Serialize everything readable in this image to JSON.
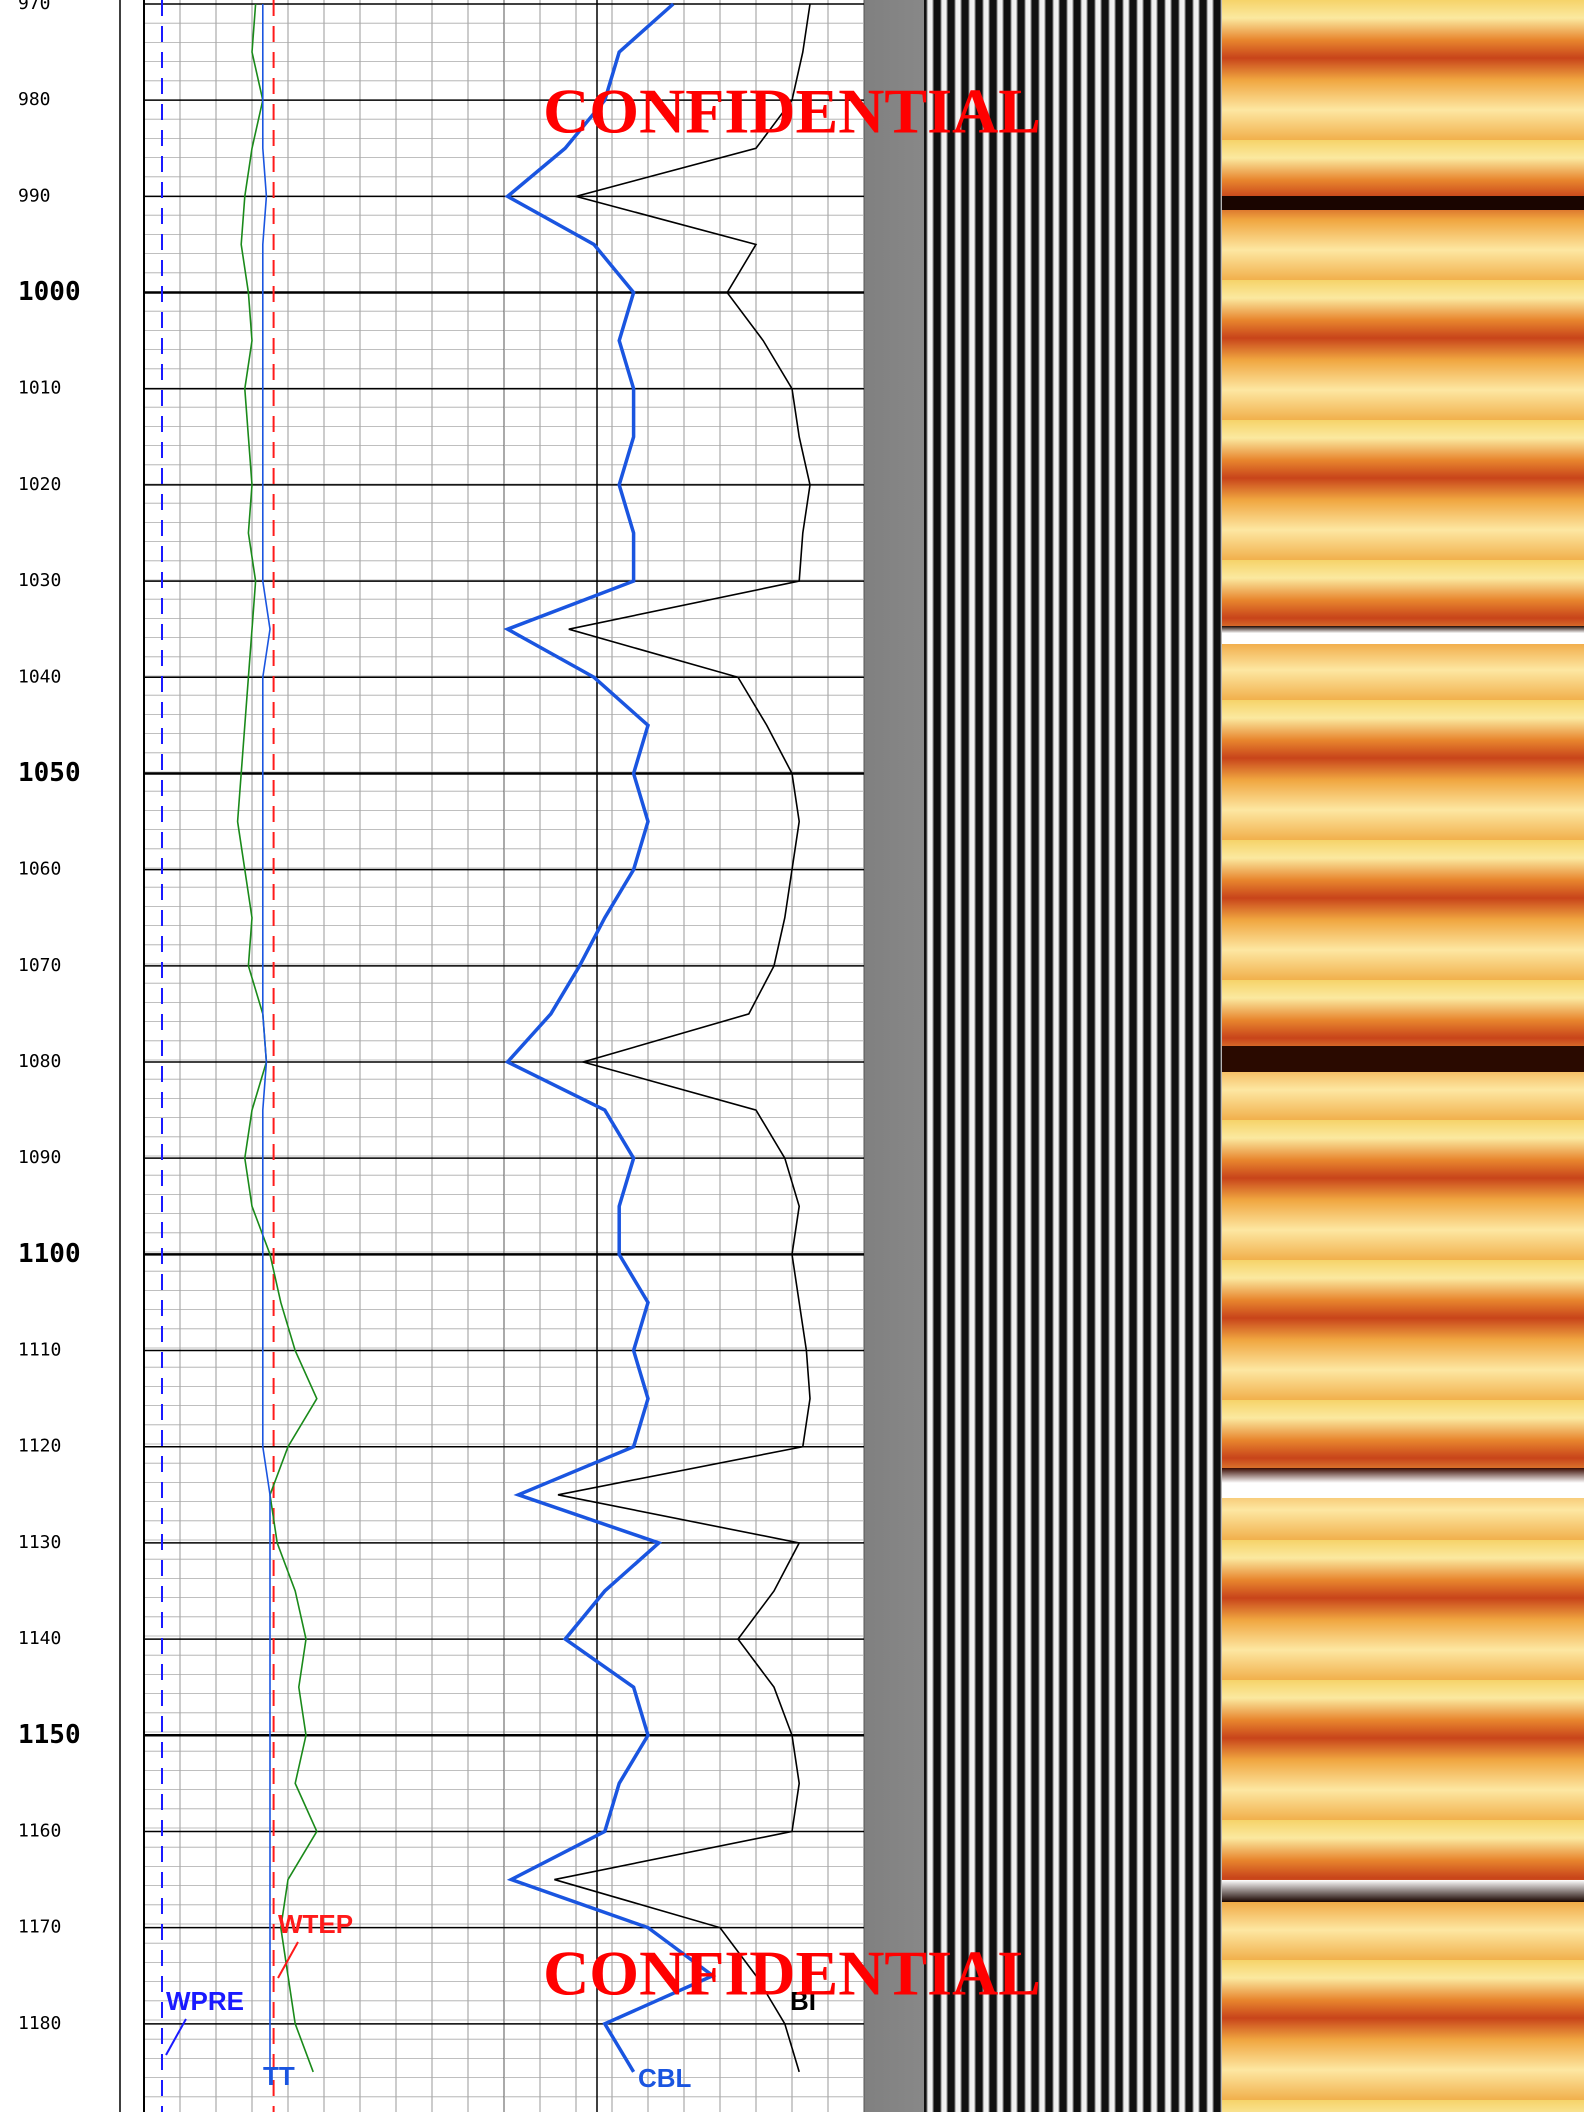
{
  "chart_data": {
    "type": "well-log",
    "ylim": [
      970,
      1190
    ],
    "yticks": [
      970,
      980,
      990,
      1000,
      1010,
      1020,
      1030,
      1040,
      1050,
      1060,
      1070,
      1080,
      1090,
      1100,
      1110,
      1120,
      1130,
      1140,
      1150,
      1160,
      1170,
      1180
    ],
    "xlim": [
      0,
      100
    ],
    "depths": [
      970,
      975,
      980,
      985,
      990,
      995,
      1000,
      1005,
      1010,
      1015,
      1020,
      1025,
      1030,
      1035,
      1040,
      1045,
      1050,
      1055,
      1060,
      1065,
      1070,
      1075,
      1080,
      1085,
      1090,
      1095,
      1100,
      1105,
      1110,
      1115,
      1120,
      1125,
      1130,
      1135,
      1140,
      1145,
      1150,
      1155,
      1160,
      1165,
      1170,
      1175,
      1180,
      1185
    ],
    "constants": [
      {
        "name": "WPRE",
        "color": "#1a1aff",
        "track": 1,
        "value": 5
      },
      {
        "name": "WTEP",
        "color": "#ff1a1a",
        "track": 1,
        "value": 36
      }
    ],
    "series": [
      {
        "color": "#1a8a1a",
        "track": 1,
        "values": [
          31,
          30,
          33,
          30,
          28,
          27,
          29,
          30,
          28,
          29,
          30,
          29,
          31,
          30,
          29,
          28,
          27,
          26,
          28,
          30,
          29,
          33,
          34,
          30,
          28,
          30,
          35,
          38,
          42,
          48,
          40,
          35,
          37,
          42,
          45,
          43,
          45,
          42,
          48,
          40,
          38,
          40,
          42,
          47
        ]
      },
      {
        "name": "TT",
        "color": "#1a55e0",
        "track": 1,
        "values": [
          33,
          33,
          33,
          33,
          34,
          33,
          33,
          33,
          33,
          33,
          33,
          33,
          33,
          35,
          33,
          33,
          33,
          33,
          33,
          33,
          33,
          33,
          34,
          33,
          33,
          33,
          33,
          33,
          33,
          33,
          33,
          35,
          35,
          35,
          35,
          35,
          35,
          35,
          35,
          35,
          35,
          35,
          35,
          35
        ]
      },
      {
        "name": "CBL",
        "color": "#1a55e0",
        "track": 2,
        "values": [
          47,
          32,
          28,
          17,
          1,
          25,
          36,
          32,
          36,
          36,
          32,
          36,
          36,
          1,
          25,
          40,
          36,
          40,
          36,
          28,
          21,
          13,
          1,
          28,
          36,
          32,
          32,
          40,
          36,
          40,
          36,
          4,
          43,
          28,
          17,
          36,
          40,
          32,
          28,
          2,
          40,
          58,
          28,
          36
        ]
      },
      {
        "name": "BI",
        "color": "#000000",
        "track": 2,
        "values": [
          85,
          83,
          80,
          70,
          20,
          70,
          62,
          72,
          80,
          82,
          85,
          83,
          82,
          18,
          65,
          73,
          80,
          82,
          80,
          78,
          75,
          68,
          22,
          70,
          78,
          82,
          80,
          82,
          84,
          85,
          83,
          15,
          82,
          75,
          65,
          75,
          80,
          82,
          80,
          14,
          60,
          70,
          78,
          82
        ]
      }
    ],
    "watermark": [
      "CONFIDENTIAL",
      "CONFIDENTIAL"
    ]
  }
}
